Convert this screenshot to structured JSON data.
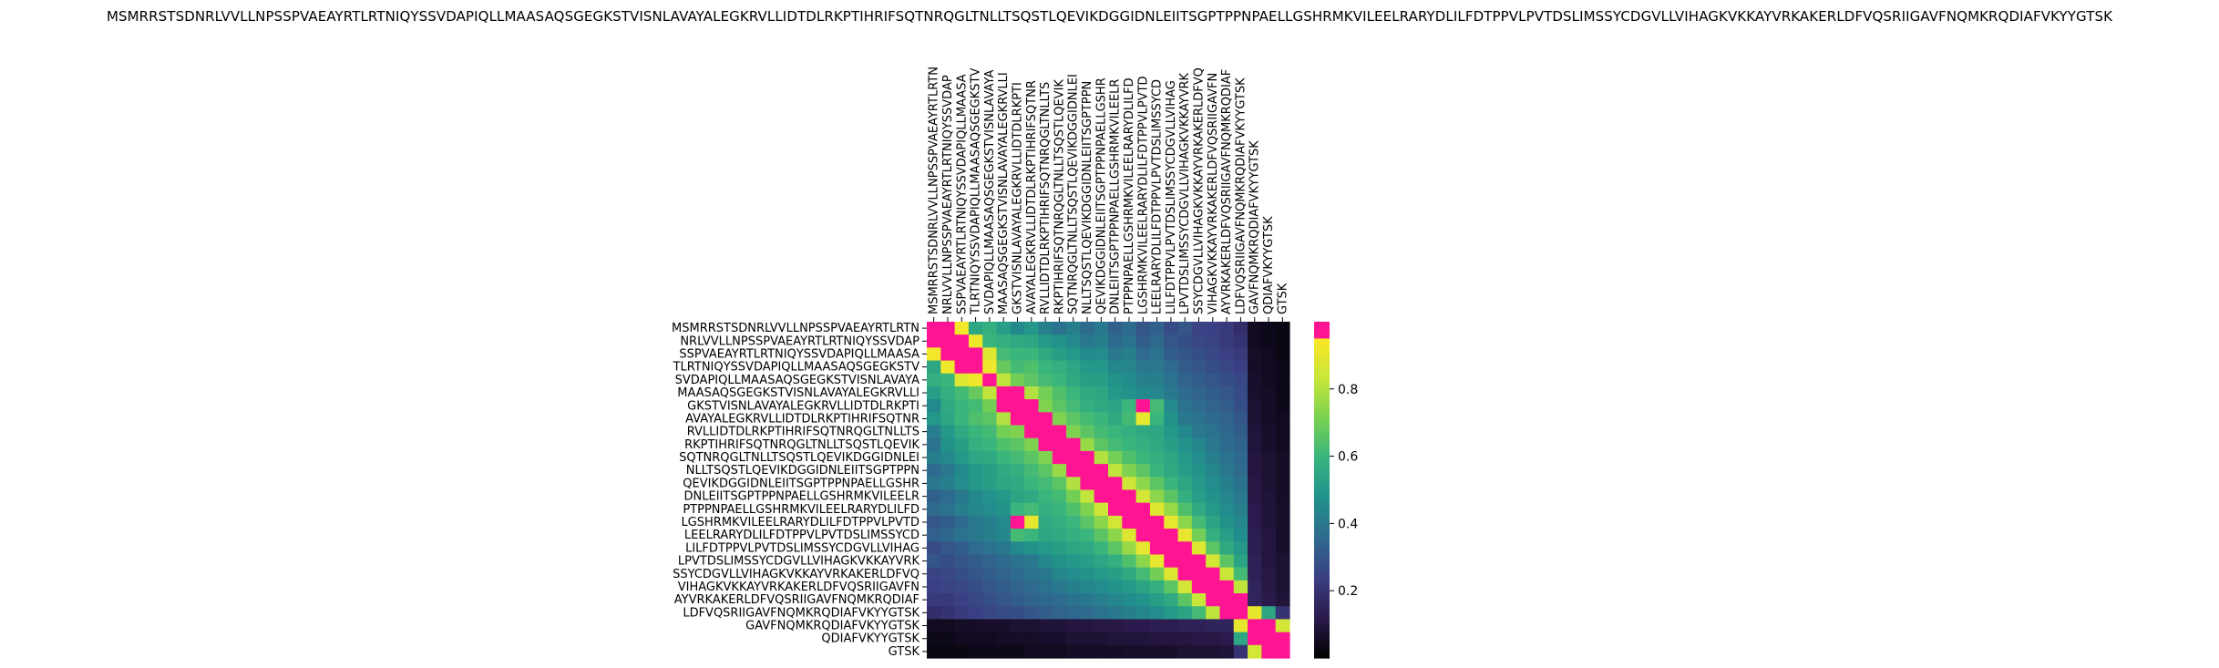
{
  "chart_data": {
    "type": "heatmap",
    "title": "MSMRRSTSDNRLVVLLNPSSPVAEAYRTLRTNIQYSSVDAPIQLLMAASAQSGEGKSTVISNLAVAYALEGKRVLLIDTDLRKPTIHRIFSQTNRQGLTNLLTSQSTLQEVIKDGGIDNLEIITSGPTPPNPAELLGSHRMKVILEELRARYDLILFDTPPVLPVTDSLIMSSYCDGVLLVIHAGKVKKAYVRKAKERLDFVQSRIIGAVFNQMKRQDIAFVKYYGTSK",
    "row_labels": [
      "MSMRRSTSDNRLVVLLNPSSPVAEAYRTLRTN",
      "NRLVVLLNPSSPVAEAYRTLRTNIQYSSVDAP",
      "SSPVAEAYRTLRTNIQYSSVDAPIQLLMAASA",
      "TLRTNIQYSSVDAPIQLLMAASAQSGEGKSTV",
      "SVDAPIQLLMAASAQSGEGKSTVISNLAVAYA",
      "MAASAQSGEGKSTVISNLAVAYALEGKRVLLI",
      "GKSTVISNLAVAYALEGKRVLLIDTDLRKPTI",
      "AVAYALEGKRVLLIDTDLRKPTIHRIFSQTNR",
      "RVLLIDTDLRKPTIHRIFSQTNRQGLTNLLTS",
      "RKPTIHRIFSQTNRQGLTNLLTSQSTLQEVIK",
      "SQTNRQGLTNLLTSQSTLQEVIKDGGIDNLEI",
      "NLLTSQSTLQEVIKDGGIDNLEIITSGPTPPN",
      "QEVIKDGGIDNLEIITSGPTPPNPAELLGSHR",
      "DNLEIITSGPTPPNPAELLGSHRMKVILEELR",
      "PTPPNPAELLGSHRMKVILEELRARYDLILFD",
      "LGSHRMKVILEELRARYDLILFDTPPVLPVTD",
      "LEELRARYDLILFDTPPVLPVTDSLIMSSYCD",
      "LILFDTPPVLPVTDSLIMSSYCDGVLLVIHAG",
      "LPVTDSLIMSSYCDGVLLVIHAGKVKKAYVRK",
      "SSYCDGVLLVIHAGKVKKAYVRKAKERLDFVQ",
      "VIHAGKVKKAYVRKAKERLDFVQSRIIGAVFN",
      "AYVRKAKERLDFVQSRIIGAVFNQMKRQDIAF",
      "LDFVQSRIIGAVFNQMKRQDIAFVKYYGTSK",
      "GAVFNQMKRQDIAFVKYYGTSK",
      "QDIAFVKYYGTSK",
      "GTSK"
    ],
    "col_labels": [
      "MSMRRSTSDNRLVVLLNPSSPVAEAYRTLRTN",
      "NRLVVLLNPSSPVAEAYRTLRTNIQYSSVDAP",
      "SSPVAEAYRTLRTNIQYSSVDAPIQLLMAASA",
      "TLRTNIQYSSVDAPIQLLMAASAQSGEGKSTV",
      "SVDAPIQLLMAASAQSGEGKSTVISNLAVAYA",
      "MAASAQSGEGKSTVISNLAVAYALEGKRVLLI",
      "GKSTVISNLAVAYALEGKRVLLIDTDLRKPTI",
      "AVAYALEGKRVLLIDTDLRKPTIHRIFSQTNR",
      "RVLLIDTDLRKPTIHRIFSQTNRQGLTNLLTS",
      "RKPTIHRIFSQTNRQGLTNLLTSQSTLQEVIK",
      "SQTNRQGLTNLLTSQSTLQEVIKDGGIDNLEI",
      "NLLTSQSTLQEVIKDGGIDNLEIITSGPTPPN",
      "QEVIKDGGIDNLEIITSGPTPPNPAELLGSHR",
      "DNLEIITSGPTPPNPAELLGSHRMKVILEELR",
      "PTPPNPAELLGSHRMKVILEELRARYDLILFD",
      "LGSHRMKVILEELRARYDLILFDTPPVLPVTD",
      "LEELRARYDLILFDTPPVLPVTDSLIMSSYCD",
      "LILFDTPPVLPVTDSLIMSSYCDGVLLVIHAG",
      "LPVTDSLIMSSYCDGVLLVIHAGKVKKAYVRK",
      "SSYCDGVLLVIHAGKVKKAYVRKAKERLDFVQ",
      "VIHAGKVKKAYVRKAKERLDFVQSRIIGAVFN",
      "AYVRKAKERLDFVQSRIIGAVFNQMKRQDIAF",
      "LDFVQSRIIGAVFNQMKRQDIAFVKYYGTSK",
      "GAVFNQMKRQDIAFVKYYGTSK",
      "QDIAFVKYYGTSK",
      "GTSK"
    ],
    "colorbar": {
      "ticks": [
        0.2,
        0.4,
        0.6,
        0.8
      ],
      "tick_labels": [
        "0.2",
        "0.4",
        "0.6",
        "0.8"
      ],
      "range": [
        0.0,
        1.0
      ],
      "palette": [
        "#000000",
        "#2b1a4c",
        "#3b3f84",
        "#2e6a8e",
        "#21918c",
        "#36b37e",
        "#7ad151",
        "#c6e63a",
        "#fde725",
        "#ff1493"
      ]
    },
    "values": [
      [
        0.99,
        0.96,
        0.93,
        0.55,
        0.58,
        0.52,
        0.45,
        0.5,
        0.42,
        0.38,
        0.42,
        0.36,
        0.4,
        0.33,
        0.36,
        0.3,
        0.33,
        0.27,
        0.3,
        0.25,
        0.24,
        0.22,
        0.18,
        0.05,
        0.04,
        0.03
      ],
      [
        0.96,
        0.99,
        0.96,
        0.92,
        0.6,
        0.58,
        0.56,
        0.55,
        0.5,
        0.48,
        0.45,
        0.4,
        0.42,
        0.36,
        0.38,
        0.32,
        0.35,
        0.3,
        0.28,
        0.26,
        0.25,
        0.22,
        0.2,
        0.05,
        0.04,
        0.03
      ],
      [
        0.93,
        0.96,
        0.99,
        0.95,
        0.88,
        0.62,
        0.6,
        0.6,
        0.56,
        0.52,
        0.5,
        0.45,
        0.46,
        0.4,
        0.42,
        0.36,
        0.38,
        0.32,
        0.3,
        0.28,
        0.26,
        0.24,
        0.22,
        0.06,
        0.05,
        0.03
      ],
      [
        0.55,
        0.92,
        0.95,
        0.99,
        0.92,
        0.68,
        0.62,
        0.64,
        0.6,
        0.58,
        0.55,
        0.5,
        0.5,
        0.45,
        0.44,
        0.4,
        0.4,
        0.36,
        0.32,
        0.3,
        0.28,
        0.26,
        0.24,
        0.06,
        0.05,
        0.04
      ],
      [
        0.58,
        0.6,
        0.88,
        0.92,
        0.99,
        0.82,
        0.7,
        0.66,
        0.62,
        0.6,
        0.56,
        0.52,
        0.52,
        0.48,
        0.46,
        0.42,
        0.42,
        0.38,
        0.34,
        0.32,
        0.3,
        0.28,
        0.26,
        0.07,
        0.05,
        0.04
      ],
      [
        0.52,
        0.58,
        0.62,
        0.68,
        0.82,
        0.99,
        0.97,
        0.8,
        0.7,
        0.64,
        0.6,
        0.56,
        0.55,
        0.5,
        0.48,
        0.45,
        0.44,
        0.4,
        0.36,
        0.34,
        0.32,
        0.3,
        0.27,
        0.07,
        0.06,
        0.04
      ],
      [
        0.45,
        0.56,
        0.6,
        0.62,
        0.7,
        0.97,
        0.99,
        0.98,
        0.72,
        0.66,
        0.62,
        0.58,
        0.56,
        0.54,
        0.6,
        0.98,
        0.62,
        0.45,
        0.38,
        0.36,
        0.34,
        0.32,
        0.28,
        0.08,
        0.06,
        0.04
      ],
      [
        0.5,
        0.55,
        0.6,
        0.64,
        0.66,
        0.8,
        0.98,
        0.99,
        0.97,
        0.72,
        0.66,
        0.62,
        0.6,
        0.56,
        0.62,
        0.9,
        0.6,
        0.48,
        0.4,
        0.38,
        0.36,
        0.34,
        0.3,
        0.08,
        0.06,
        0.05
      ],
      [
        0.42,
        0.5,
        0.56,
        0.6,
        0.62,
        0.7,
        0.72,
        0.97,
        0.99,
        0.96,
        0.72,
        0.66,
        0.62,
        0.6,
        0.58,
        0.56,
        0.55,
        0.5,
        0.45,
        0.4,
        0.38,
        0.35,
        0.32,
        0.09,
        0.07,
        0.05
      ],
      [
        0.38,
        0.48,
        0.52,
        0.58,
        0.6,
        0.64,
        0.66,
        0.72,
        0.96,
        0.99,
        0.96,
        0.76,
        0.66,
        0.62,
        0.6,
        0.58,
        0.56,
        0.52,
        0.48,
        0.44,
        0.4,
        0.36,
        0.34,
        0.09,
        0.07,
        0.05
      ],
      [
        0.42,
        0.45,
        0.5,
        0.55,
        0.56,
        0.6,
        0.62,
        0.66,
        0.72,
        0.96,
        0.99,
        0.97,
        0.8,
        0.7,
        0.64,
        0.6,
        0.58,
        0.55,
        0.5,
        0.46,
        0.42,
        0.38,
        0.35,
        0.1,
        0.08,
        0.06
      ],
      [
        0.36,
        0.4,
        0.45,
        0.5,
        0.52,
        0.56,
        0.58,
        0.62,
        0.66,
        0.76,
        0.97,
        0.99,
        0.97,
        0.82,
        0.72,
        0.66,
        0.6,
        0.56,
        0.52,
        0.48,
        0.44,
        0.4,
        0.36,
        0.1,
        0.08,
        0.06
      ],
      [
        0.4,
        0.42,
        0.46,
        0.5,
        0.52,
        0.55,
        0.56,
        0.6,
        0.62,
        0.66,
        0.8,
        0.97,
        0.99,
        0.97,
        0.85,
        0.74,
        0.66,
        0.6,
        0.55,
        0.5,
        0.46,
        0.42,
        0.38,
        0.11,
        0.08,
        0.06
      ],
      [
        0.33,
        0.36,
        0.4,
        0.45,
        0.48,
        0.5,
        0.54,
        0.56,
        0.6,
        0.62,
        0.7,
        0.82,
        0.97,
        0.99,
        0.97,
        0.86,
        0.74,
        0.66,
        0.58,
        0.52,
        0.48,
        0.44,
        0.4,
        0.11,
        0.09,
        0.06
      ],
      [
        0.36,
        0.38,
        0.42,
        0.44,
        0.46,
        0.48,
        0.6,
        0.62,
        0.58,
        0.6,
        0.64,
        0.72,
        0.85,
        0.97,
        0.99,
        0.97,
        0.88,
        0.76,
        0.64,
        0.56,
        0.5,
        0.46,
        0.42,
        0.12,
        0.09,
        0.07
      ],
      [
        0.3,
        0.32,
        0.36,
        0.4,
        0.42,
        0.45,
        0.98,
        0.9,
        0.56,
        0.58,
        0.6,
        0.66,
        0.74,
        0.86,
        0.97,
        0.99,
        0.97,
        0.9,
        0.74,
        0.62,
        0.54,
        0.48,
        0.44,
        0.12,
        0.09,
        0.07
      ],
      [
        0.33,
        0.35,
        0.38,
        0.4,
        0.42,
        0.44,
        0.62,
        0.6,
        0.55,
        0.56,
        0.58,
        0.6,
        0.66,
        0.74,
        0.88,
        0.97,
        0.99,
        0.97,
        0.9,
        0.7,
        0.58,
        0.52,
        0.46,
        0.13,
        0.1,
        0.07
      ],
      [
        0.27,
        0.3,
        0.32,
        0.36,
        0.38,
        0.4,
        0.45,
        0.48,
        0.5,
        0.52,
        0.55,
        0.56,
        0.6,
        0.66,
        0.76,
        0.9,
        0.97,
        0.99,
        0.97,
        0.88,
        0.66,
        0.56,
        0.5,
        0.13,
        0.1,
        0.07
      ],
      [
        0.3,
        0.28,
        0.3,
        0.32,
        0.34,
        0.36,
        0.38,
        0.4,
        0.45,
        0.48,
        0.5,
        0.52,
        0.55,
        0.58,
        0.64,
        0.74,
        0.9,
        0.97,
        0.99,
        0.97,
        0.86,
        0.66,
        0.54,
        0.14,
        0.1,
        0.08
      ],
      [
        0.25,
        0.26,
        0.28,
        0.3,
        0.32,
        0.34,
        0.36,
        0.38,
        0.4,
        0.44,
        0.46,
        0.48,
        0.5,
        0.52,
        0.56,
        0.62,
        0.7,
        0.88,
        0.97,
        0.99,
        0.97,
        0.84,
        0.62,
        0.14,
        0.11,
        0.08
      ],
      [
        0.24,
        0.25,
        0.26,
        0.28,
        0.3,
        0.32,
        0.34,
        0.36,
        0.38,
        0.4,
        0.42,
        0.44,
        0.46,
        0.48,
        0.5,
        0.54,
        0.58,
        0.66,
        0.86,
        0.97,
        0.99,
        0.97,
        0.82,
        0.15,
        0.11,
        0.08
      ],
      [
        0.22,
        0.22,
        0.24,
        0.26,
        0.28,
        0.3,
        0.32,
        0.34,
        0.35,
        0.36,
        0.38,
        0.4,
        0.42,
        0.44,
        0.46,
        0.48,
        0.52,
        0.56,
        0.66,
        0.84,
        0.97,
        0.99,
        0.96,
        0.15,
        0.12,
        0.09
      ],
      [
        0.18,
        0.2,
        0.22,
        0.24,
        0.26,
        0.27,
        0.28,
        0.3,
        0.32,
        0.34,
        0.35,
        0.36,
        0.38,
        0.4,
        0.42,
        0.44,
        0.46,
        0.5,
        0.54,
        0.62,
        0.82,
        0.96,
        0.99,
        0.9,
        0.55,
        0.2
      ],
      [
        0.05,
        0.05,
        0.06,
        0.06,
        0.07,
        0.07,
        0.08,
        0.08,
        0.09,
        0.09,
        0.1,
        0.1,
        0.11,
        0.11,
        0.12,
        0.12,
        0.13,
        0.13,
        0.14,
        0.14,
        0.15,
        0.15,
        0.9,
        0.99,
        0.97,
        0.86
      ],
      [
        0.04,
        0.04,
        0.05,
        0.05,
        0.05,
        0.06,
        0.06,
        0.06,
        0.07,
        0.07,
        0.08,
        0.08,
        0.08,
        0.09,
        0.09,
        0.09,
        0.1,
        0.1,
        0.1,
        0.11,
        0.11,
        0.12,
        0.55,
        0.97,
        0.99,
        0.96
      ],
      [
        0.03,
        0.03,
        0.03,
        0.04,
        0.04,
        0.04,
        0.04,
        0.05,
        0.05,
        0.05,
        0.06,
        0.06,
        0.06,
        0.06,
        0.07,
        0.07,
        0.07,
        0.07,
        0.08,
        0.08,
        0.08,
        0.09,
        0.2,
        0.86,
        0.96,
        0.99
      ]
    ]
  }
}
